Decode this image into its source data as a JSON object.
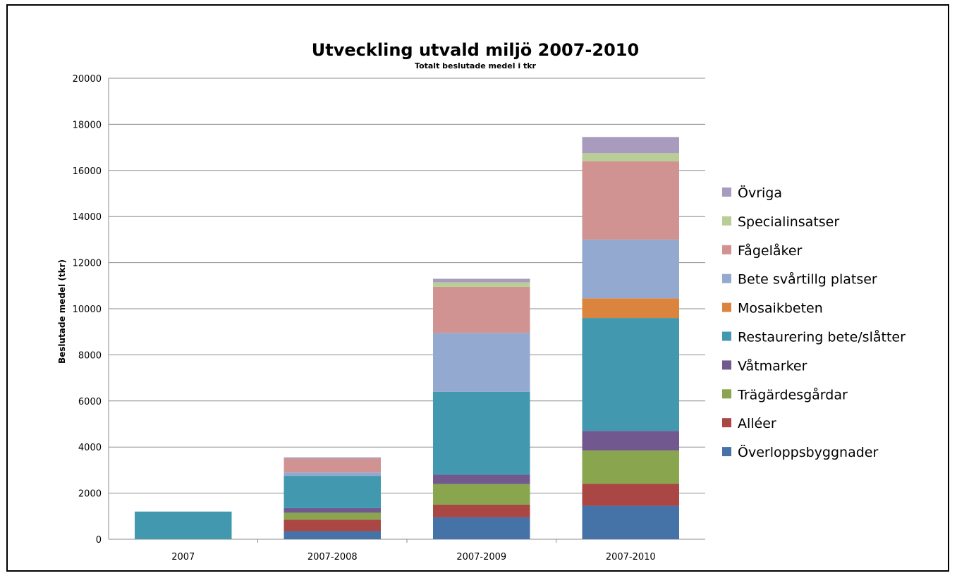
{
  "chart_data": {
    "type": "bar",
    "stacked": true,
    "title": "Utveckling utvald miljö 2007-2010",
    "subtitle": "Totalt beslutade medel i tkr",
    "xlabel": "",
    "ylabel": "Beslutade medel (tkr)",
    "ylim": [
      0,
      20000
    ],
    "yticks": [
      "0",
      "2000",
      "4000",
      "6000",
      "8000",
      "10000",
      "12000",
      "14000",
      "16000",
      "18000",
      "20000"
    ],
    "grid": true,
    "legend_position": "right",
    "categories": [
      "2007",
      "2007-2008",
      "2007-2009",
      "2007-2010"
    ],
    "series": [
      {
        "name": "Överloppsbyggnader",
        "color": "#4572a7",
        "values": [
          0,
          350,
          950,
          1450
        ]
      },
      {
        "name": "Alléer",
        "color": "#aa4643",
        "values": [
          0,
          500,
          550,
          950
        ]
      },
      {
        "name": "Trägärdesgårdar",
        "color": "#89a54e",
        "values": [
          0,
          300,
          900,
          1450
        ]
      },
      {
        "name": "Våtmarker",
        "color": "#71588f",
        "values": [
          0,
          200,
          400,
          850
        ]
      },
      {
        "name": "Restaurering bete/slåtter",
        "color": "#4198af",
        "values": [
          1200,
          1400,
          3600,
          4900
        ]
      },
      {
        "name": "Mosaikbeten",
        "color": "#db843d",
        "values": [
          0,
          0,
          0,
          850
        ]
      },
      {
        "name": "Bete svårtillg platser",
        "color": "#93a9cf",
        "values": [
          0,
          150,
          2550,
          2550
        ]
      },
      {
        "name": "Fågelåker",
        "color": "#d19392",
        "values": [
          0,
          600,
          2000,
          3400
        ]
      },
      {
        "name": "Specialinsatser",
        "color": "#b9cd96",
        "values": [
          0,
          0,
          200,
          350
        ]
      },
      {
        "name": "Övriga",
        "color": "#a99bbd",
        "values": [
          0,
          50,
          150,
          700
        ]
      }
    ]
  }
}
